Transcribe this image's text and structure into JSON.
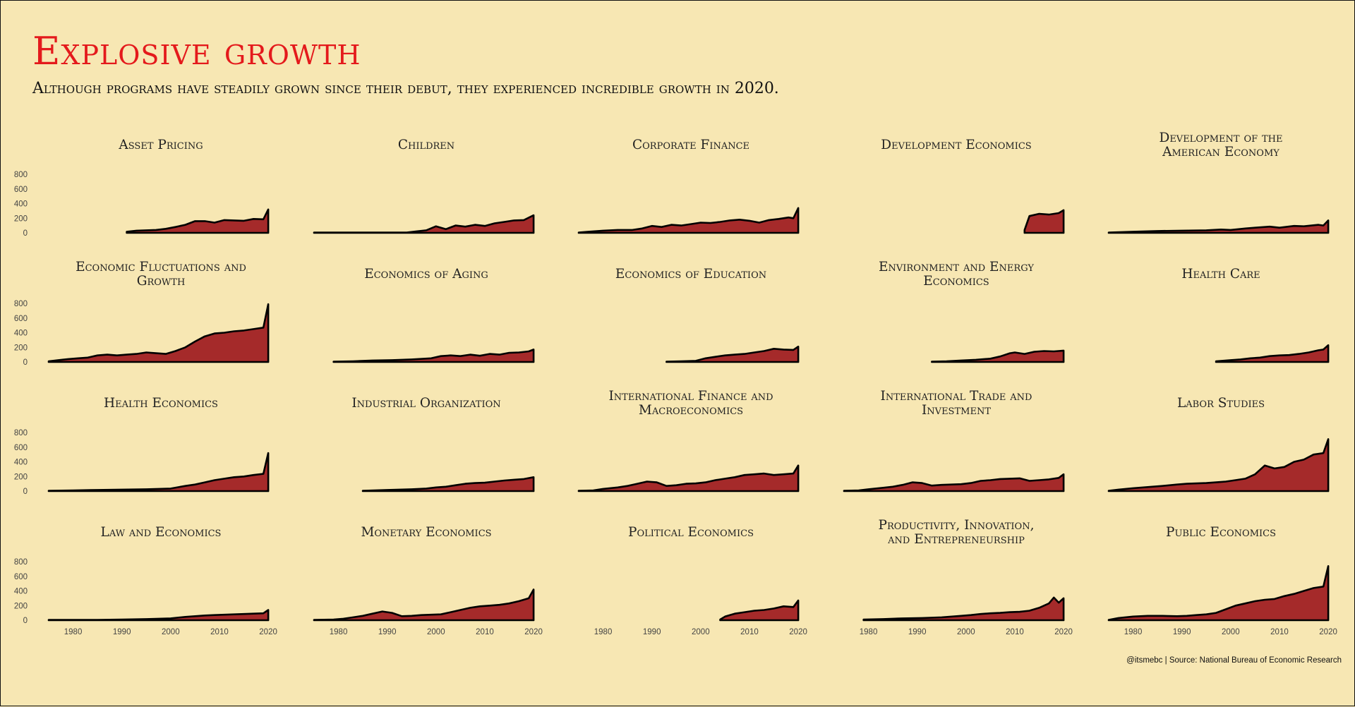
{
  "title": "Explosive growth",
  "subtitle": "Although programs have steadily grown since their debut, they experienced incredible growth in 2020.",
  "caption": "@itsmebc | Source: National Bureau of Economic Research",
  "colors": {
    "background": "#f7e7b3",
    "title": "#e41a1c",
    "fill": "#a52a2a",
    "line": "#000000"
  },
  "chart_data": {
    "type": "area",
    "layout": "small multiples, 4 rows x 5 columns, shared axes",
    "xlim": [
      1975,
      2021
    ],
    "ylim": [
      0,
      820
    ],
    "x_ticks": [
      1980,
      1990,
      2000,
      2010,
      2020
    ],
    "y_ticks": [
      0,
      200,
      400,
      600,
      800
    ],
    "grid": false,
    "panels": [
      {
        "title": "Asset Pricing",
        "x": [
          1991,
          1993,
          1995,
          1997,
          1999,
          2001,
          2003,
          2005,
          2007,
          2009,
          2011,
          2013,
          2015,
          2017,
          2019,
          2020
        ],
        "y": [
          15,
          30,
          35,
          40,
          55,
          80,
          110,
          160,
          160,
          140,
          175,
          170,
          165,
          190,
          185,
          320
        ]
      },
      {
        "title": "Children",
        "x": [
          1975,
          1985,
          1994,
          1996,
          1998,
          2000,
          2002,
          2004,
          2006,
          2008,
          2010,
          2012,
          2014,
          2016,
          2018,
          2020
        ],
        "y": [
          5,
          5,
          5,
          20,
          35,
          90,
          50,
          100,
          85,
          110,
          95,
          130,
          150,
          170,
          175,
          240
        ]
      },
      {
        "title": "Corporate Finance",
        "x": [
          1975,
          1977,
          1980,
          1983,
          1986,
          1988,
          1990,
          1992,
          1994,
          1996,
          1998,
          2000,
          2002,
          2004,
          2006,
          2008,
          2010,
          2012,
          2014,
          2016,
          2018,
          2019,
          2020
        ],
        "y": [
          5,
          15,
          30,
          40,
          40,
          60,
          95,
          80,
          110,
          100,
          120,
          140,
          135,
          150,
          170,
          180,
          165,
          140,
          175,
          190,
          210,
          200,
          340
        ]
      },
      {
        "title": "Development Economics",
        "x": [
          2012,
          2013,
          2015,
          2017,
          2019,
          2020
        ],
        "y": [
          40,
          230,
          260,
          250,
          270,
          310
        ]
      },
      {
        "title": "Development of the American Economy",
        "x": [
          1975,
          1980,
          1985,
          1990,
          1995,
          1998,
          2000,
          2003,
          2005,
          2008,
          2010,
          2013,
          2015,
          2018,
          2019,
          2020
        ],
        "y": [
          5,
          15,
          25,
          30,
          35,
          45,
          40,
          60,
          70,
          85,
          70,
          95,
          90,
          110,
          100,
          170
        ]
      },
      {
        "title": "Economic Fluctuations and Growth",
        "x": [
          1975,
          1977,
          1979,
          1981,
          1983,
          1985,
          1987,
          1989,
          1991,
          1993,
          1995,
          1997,
          1999,
          2001,
          2003,
          2005,
          2007,
          2009,
          2011,
          2013,
          2015,
          2017,
          2019,
          2020
        ],
        "y": [
          10,
          25,
          40,
          50,
          60,
          90,
          100,
          90,
          100,
          110,
          130,
          120,
          110,
          150,
          200,
          280,
          350,
          390,
          400,
          420,
          430,
          450,
          470,
          790
        ]
      },
      {
        "title": "Economics of Aging",
        "x": [
          1979,
          1983,
          1987,
          1991,
          1995,
          1999,
          2001,
          2003,
          2005,
          2007,
          2009,
          2011,
          2013,
          2015,
          2017,
          2019,
          2020
        ],
        "y": [
          5,
          10,
          20,
          25,
          35,
          50,
          80,
          90,
          80,
          100,
          85,
          110,
          100,
          125,
          130,
          145,
          170
        ]
      },
      {
        "title": "Economics of Education",
        "x": [
          1993,
          1996,
          1999,
          2001,
          2003,
          2005,
          2007,
          2009,
          2011,
          2013,
          2015,
          2017,
          2019,
          2020
        ],
        "y": [
          5,
          10,
          15,
          50,
          70,
          90,
          100,
          110,
          130,
          150,
          180,
          170,
          165,
          210
        ]
      },
      {
        "title": "Environment and Energy Economics",
        "x": [
          1993,
          1996,
          1999,
          2002,
          2005,
          2007,
          2009,
          2010,
          2012,
          2014,
          2016,
          2018,
          2020
        ],
        "y": [
          5,
          10,
          20,
          30,
          45,
          75,
          120,
          130,
          110,
          140,
          150,
          145,
          155
        ]
      },
      {
        "title": "Health Care",
        "x": [
          1997,
          2000,
          2002,
          2004,
          2006,
          2008,
          2010,
          2012,
          2014,
          2016,
          2018,
          2019,
          2020
        ],
        "y": [
          10,
          25,
          35,
          50,
          60,
          80,
          90,
          95,
          110,
          130,
          160,
          170,
          230
        ]
      },
      {
        "title": "Health Economics",
        "x": [
          1975,
          1980,
          1985,
          1990,
          1995,
          2000,
          2003,
          2005,
          2007,
          2009,
          2011,
          2013,
          2015,
          2017,
          2019,
          2020
        ],
        "y": [
          5,
          10,
          15,
          20,
          25,
          35,
          70,
          90,
          120,
          150,
          170,
          190,
          200,
          220,
          235,
          520
        ]
      },
      {
        "title": "Industrial Organization",
        "x": [
          1985,
          1990,
          1995,
          1998,
          2000,
          2002,
          2004,
          2006,
          2008,
          2010,
          2012,
          2014,
          2016,
          2018,
          2020
        ],
        "y": [
          5,
          15,
          25,
          35,
          50,
          60,
          80,
          100,
          110,
          115,
          130,
          145,
          155,
          165,
          190
        ]
      },
      {
        "title": "International Finance and Macroeconomics",
        "x": [
          1975,
          1978,
          1980,
          1983,
          1985,
          1987,
          1989,
          1991,
          1993,
          1995,
          1997,
          1999,
          2001,
          2003,
          2005,
          2007,
          2009,
          2011,
          2013,
          2015,
          2017,
          2019,
          2020
        ],
        "y": [
          5,
          10,
          30,
          50,
          70,
          100,
          130,
          120,
          70,
          80,
          100,
          105,
          120,
          150,
          170,
          190,
          220,
          230,
          240,
          220,
          230,
          240,
          350
        ]
      },
      {
        "title": "International Trade and Investment",
        "x": [
          1975,
          1978,
          1980,
          1983,
          1985,
          1987,
          1989,
          1991,
          1993,
          1995,
          1997,
          1999,
          2001,
          2003,
          2005,
          2007,
          2009,
          2011,
          2013,
          2015,
          2017,
          2019,
          2020
        ],
        "y": [
          5,
          10,
          25,
          45,
          60,
          85,
          120,
          110,
          75,
          85,
          90,
          95,
          110,
          140,
          150,
          165,
          170,
          175,
          140,
          150,
          160,
          180,
          230
        ]
      },
      {
        "title": "Labor Studies",
        "x": [
          1975,
          1977,
          1980,
          1983,
          1986,
          1989,
          1991,
          1993,
          1995,
          1997,
          1999,
          2001,
          2003,
          2005,
          2007,
          2009,
          2011,
          2013,
          2015,
          2017,
          2019,
          2020
        ],
        "y": [
          5,
          20,
          40,
          55,
          70,
          90,
          100,
          105,
          110,
          120,
          130,
          150,
          170,
          230,
          350,
          310,
          330,
          400,
          430,
          500,
          520,
          710
        ]
      },
      {
        "title": "Law and Economics",
        "x": [
          1975,
          1985,
          1990,
          1995,
          2000,
          2003,
          2005,
          2007,
          2009,
          2011,
          2013,
          2015,
          2017,
          2019,
          2020
        ],
        "y": [
          5,
          5,
          10,
          15,
          25,
          45,
          55,
          65,
          70,
          75,
          80,
          85,
          90,
          95,
          140
        ]
      },
      {
        "title": "Monetary Economics",
        "x": [
          1975,
          1979,
          1981,
          1983,
          1985,
          1987,
          1989,
          1991,
          1993,
          1995,
          1997,
          1999,
          2001,
          2003,
          2005,
          2007,
          2009,
          2011,
          2013,
          2015,
          2017,
          2019,
          2020
        ],
        "y": [
          5,
          10,
          20,
          40,
          60,
          90,
          120,
          100,
          55,
          60,
          70,
          75,
          80,
          110,
          140,
          170,
          190,
          200,
          210,
          230,
          260,
          300,
          420
        ]
      },
      {
        "title": "Political Economics",
        "x": [
          2004,
          2005,
          2007,
          2009,
          2011,
          2013,
          2015,
          2017,
          2019,
          2020
        ],
        "y": [
          10,
          50,
          90,
          110,
          130,
          140,
          160,
          190,
          180,
          270
        ]
      },
      {
        "title": "Productivity, Innovation, and Entrepreneurship",
        "x": [
          1979,
          1983,
          1987,
          1991,
          1995,
          1999,
          2001,
          2003,
          2005,
          2007,
          2009,
          2011,
          2013,
          2015,
          2017,
          2018,
          2019,
          2020
        ],
        "y": [
          10,
          15,
          25,
          30,
          40,
          60,
          70,
          85,
          95,
          100,
          110,
          115,
          130,
          170,
          230,
          310,
          240,
          300
        ]
      },
      {
        "title": "Public Economics",
        "x": [
          1975,
          1977,
          1980,
          1983,
          1986,
          1989,
          1991,
          1993,
          1995,
          1997,
          1999,
          2001,
          2003,
          2005,
          2007,
          2009,
          2011,
          2013,
          2015,
          2017,
          2019,
          2020
        ],
        "y": [
          5,
          30,
          50,
          60,
          60,
          55,
          60,
          70,
          80,
          100,
          150,
          200,
          230,
          260,
          280,
          290,
          330,
          360,
          400,
          440,
          460,
          740
        ]
      }
    ]
  }
}
